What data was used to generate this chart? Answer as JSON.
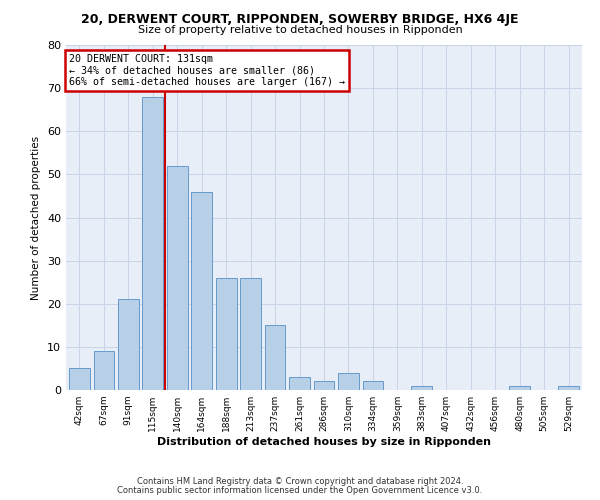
{
  "title": "20, DERWENT COURT, RIPPONDEN, SOWERBY BRIDGE, HX6 4JE",
  "subtitle": "Size of property relative to detached houses in Ripponden",
  "xlabel": "Distribution of detached houses by size in Ripponden",
  "ylabel": "Number of detached properties",
  "bar_values": [
    5,
    9,
    21,
    68,
    52,
    46,
    26,
    26,
    15,
    3,
    2,
    4,
    2,
    0,
    1,
    0,
    0,
    0,
    1,
    0,
    1
  ],
  "bin_labels": [
    "42sqm",
    "67sqm",
    "91sqm",
    "115sqm",
    "140sqm",
    "164sqm",
    "188sqm",
    "213sqm",
    "237sqm",
    "261sqm",
    "286sqm",
    "310sqm",
    "334sqm",
    "359sqm",
    "383sqm",
    "407sqm",
    "432sqm",
    "456sqm",
    "480sqm",
    "505sqm",
    "529sqm"
  ],
  "bar_color": "#b8cfe8",
  "bar_edge_color": "#6699cc",
  "property_label": "20 DERWENT COURT: 131sqm",
  "annotation_line1": "← 34% of detached houses are smaller (86)",
  "annotation_line2": "66% of semi-detached houses are larger (167) →",
  "vline_x": 3.5,
  "vline_color": "#cc0000",
  "ylim": [
    0,
    80
  ],
  "yticks": [
    0,
    10,
    20,
    30,
    40,
    50,
    60,
    70,
    80
  ],
  "grid_color": "#c8d4e8",
  "bg_color": "#e8eef8",
  "footnote1": "Contains HM Land Registry data © Crown copyright and database right 2024.",
  "footnote2": "Contains public sector information licensed under the Open Government Licence v3.0."
}
